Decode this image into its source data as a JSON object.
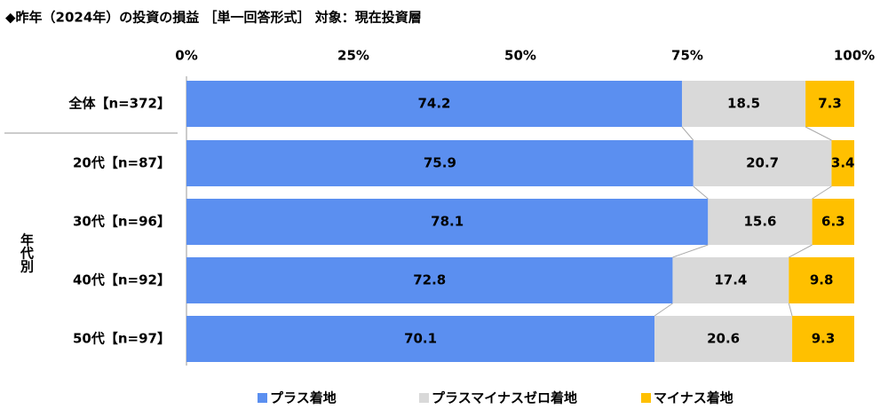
{
  "chart_data": {
    "type": "stacked-bar-100",
    "title": "◆昨年（2024年）の投資の損益 ［単一回答形式］ 対象：現在投資層",
    "categories": [
      "全体【n=372】",
      "20代【n=87】",
      "30代【n=96】",
      "40代【n=92】",
      "50代【n=97】"
    ],
    "group_label": "年代別",
    "series": [
      {
        "name": "プラス着地",
        "color": "#5b8ff0",
        "values": [
          74.2,
          75.9,
          78.1,
          72.8,
          70.1
        ]
      },
      {
        "name": "プラスマイナスゼロ着地",
        "color": "#d9d9d9",
        "values": [
          18.5,
          20.7,
          15.6,
          17.4,
          20.6
        ]
      },
      {
        "name": "マイナス着地",
        "color": "#ffc000",
        "values": [
          7.3,
          3.4,
          6.3,
          9.8,
          9.3
        ]
      }
    ],
    "xlim": [
      0,
      100
    ],
    "xticks": [
      {
        "value": 0,
        "label": "0%"
      },
      {
        "value": 25,
        "label": "25%"
      },
      {
        "value": 50,
        "label": "50%"
      },
      {
        "value": 75,
        "label": "75%"
      },
      {
        "value": 100,
        "label": "100%"
      }
    ],
    "legend": "bottom"
  }
}
